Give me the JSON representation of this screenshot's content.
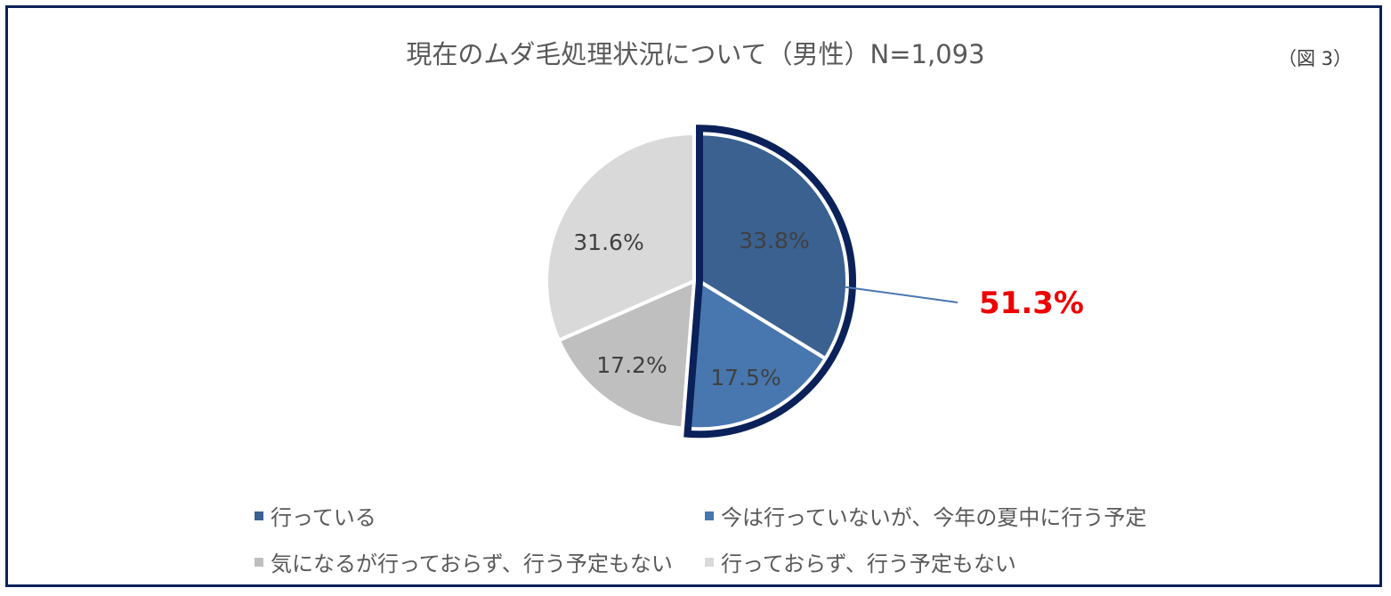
{
  "title": "現在のムダ毛処理状況について（男性）N=1,093",
  "figure_label": "（図 3）",
  "chart_data": {
    "type": "pie",
    "title": "現在のムダ毛処理状況について（男性）N=1,093",
    "slices": [
      {
        "label": "行っている",
        "value": 33.8,
        "display": "33.8%",
        "color": "#3a6190"
      },
      {
        "label": "今は行っていないが、今年の夏中に行う予定",
        "value": 17.5,
        "display": "17.5%",
        "color": "#4877af"
      },
      {
        "label": "気になるが行っておらず、行う予定もない",
        "value": 17.2,
        "display": "17.2%",
        "color": "#bfbfbf"
      },
      {
        "label": "行っておらず、行う予定もない",
        "value": 31.6,
        "display": "31.6%",
        "color": "#d9d9d9"
      }
    ],
    "callout": {
      "text": "51.3%",
      "value": 51.3,
      "color": "#ee0000",
      "outline_color": "#0b2159"
    },
    "legend_placement": "bottom"
  }
}
